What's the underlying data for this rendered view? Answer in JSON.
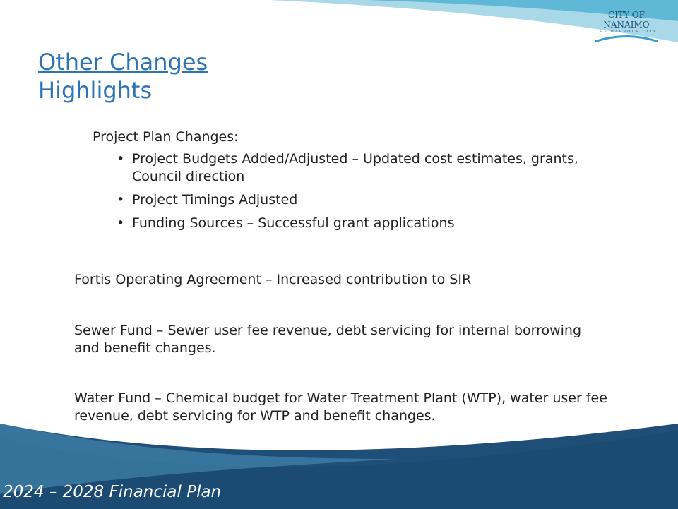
{
  "logo": {
    "line1": "CITY OF NANAIMO",
    "line2": "THE HARBOUR CITY"
  },
  "title": {
    "line1": "Other Changes",
    "line2": "Highlights"
  },
  "sections": [
    {
      "heading": "Project Plan Changes:",
      "bullets": [
        "Project Budgets Added/Adjusted – Updated cost estimates, grants, Council direction",
        "Project Timings Adjusted",
        "Funding Sources – Successful grant applications"
      ]
    },
    {
      "text": "Fortis Operating Agreement – Increased contribution to SIR"
    },
    {
      "text": "Sewer Fund – Sewer user fee revenue, debt servicing for internal borrowing and benefit changes."
    },
    {
      "text": "Water Fund – Chemical budget for Water Treatment Plant (WTP), water user fee revenue, debt servicing for WTP and benefit changes."
    }
  ],
  "footer": "2024 – 2028 Financial Plan"
}
